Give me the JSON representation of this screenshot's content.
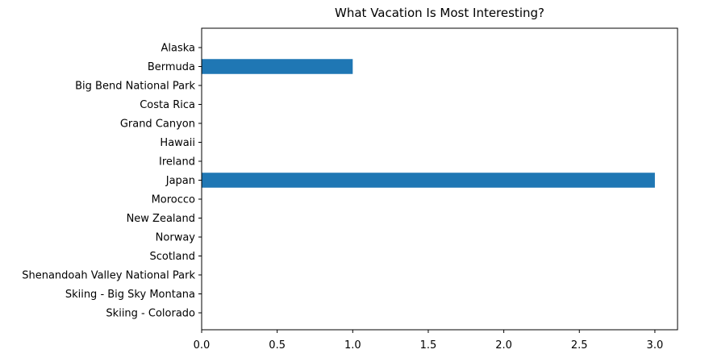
{
  "chart_data": {
    "type": "bar",
    "orientation": "horizontal",
    "title": "What Vacation Is Most Interesting?",
    "xlabel": "",
    "ylabel": "",
    "categories": [
      "Alaska",
      "Bermuda",
      "Big Bend National Park",
      "Costa Rica",
      "Grand Canyon",
      "Hawaii",
      "Ireland",
      "Japan",
      "Morocco",
      "New Zealand",
      "Norway",
      "Scotland",
      "Shenandoah Valley National Park",
      "Skiing - Big Sky Montana",
      "Skiing - Colorado"
    ],
    "values": [
      0,
      1,
      0,
      0,
      0,
      0,
      0,
      3,
      0,
      0,
      0,
      0,
      0,
      0,
      0
    ],
    "xlim": [
      0,
      3.15
    ],
    "xticks": [
      0.0,
      0.5,
      1.0,
      1.5,
      2.0,
      2.5,
      3.0
    ],
    "xtick_labels": [
      "0.0",
      "0.5",
      "1.0",
      "1.5",
      "2.0",
      "2.5",
      "3.0"
    ],
    "grid": false,
    "legend": "none",
    "bar_color": "#1f77b4"
  }
}
